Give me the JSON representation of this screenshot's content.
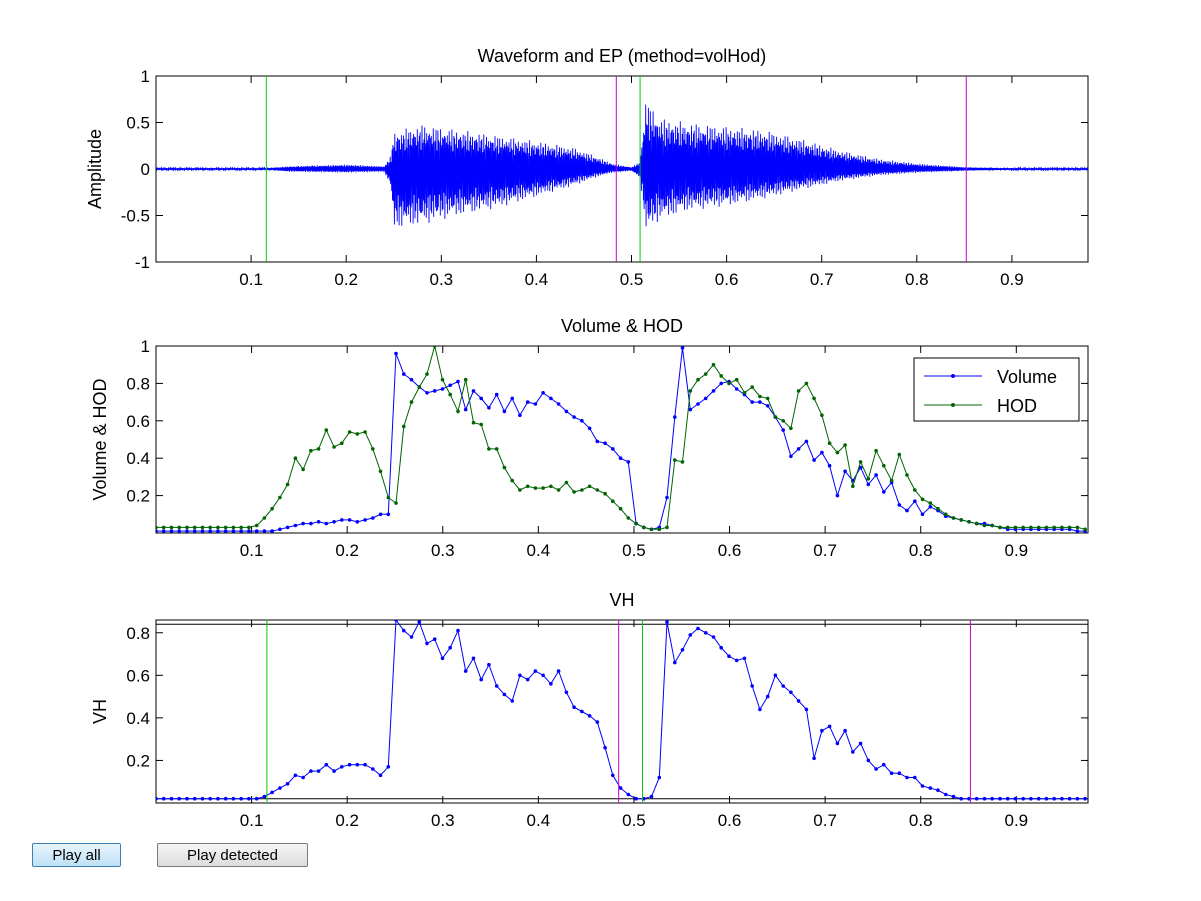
{
  "buttons": {
    "play_all": "Play all",
    "play_detected": "Play detected"
  },
  "colors": {
    "wave": "#0000ff",
    "volume": "#0000ff",
    "hod": "#006400",
    "ep_start": "#00cc00",
    "ep_end": "#cc00cc"
  },
  "endpoints": {
    "start": [
      0.116,
      0.509
    ],
    "end": [
      0.484,
      0.852
    ]
  },
  "chart_data": [
    {
      "type": "line",
      "title": "Waveform and EP (method=volHod)",
      "ylabel": "Amplitude",
      "xlim": [
        0.0,
        0.98
      ],
      "ylim": [
        -1,
        1
      ],
      "xticks": [
        "0.1",
        "0.2",
        "0.3",
        "0.4",
        "0.5",
        "0.6",
        "0.7",
        "0.8",
        "0.9"
      ],
      "yticks": [
        "-1",
        "-0.5",
        "0",
        "0.5",
        "1"
      ],
      "grid": false,
      "envelope": {
        "x": [
          0.0,
          0.116,
          0.14,
          0.2,
          0.24,
          0.247,
          0.25,
          0.28,
          0.32,
          0.36,
          0.4,
          0.44,
          0.46,
          0.48,
          0.5,
          0.509,
          0.515,
          0.53,
          0.56,
          0.6,
          0.64,
          0.68,
          0.72,
          0.76,
          0.8,
          0.852,
          0.9,
          0.98
        ],
        "pos": [
          0.01,
          0.01,
          0.03,
          0.05,
          0.03,
          0.15,
          0.4,
          0.48,
          0.42,
          0.36,
          0.3,
          0.23,
          0.15,
          0.06,
          0.02,
          0.08,
          0.75,
          0.55,
          0.5,
          0.46,
          0.42,
          0.32,
          0.2,
          0.11,
          0.06,
          0.02,
          0.01,
          0.01
        ],
        "neg": [
          -0.01,
          -0.01,
          -0.03,
          -0.04,
          -0.03,
          -0.2,
          -0.65,
          -0.6,
          -0.5,
          -0.42,
          -0.3,
          -0.18,
          -0.1,
          -0.04,
          -0.02,
          -0.1,
          -0.68,
          -0.55,
          -0.45,
          -0.4,
          -0.32,
          -0.22,
          -0.13,
          -0.07,
          -0.04,
          -0.02,
          -0.01,
          -0.01
        ]
      }
    },
    {
      "type": "line",
      "title": "Volume & HOD",
      "ylabel": "Volume & HOD",
      "xlim": [
        0.0,
        0.975
      ],
      "ylim": [
        0,
        1
      ],
      "xticks": [
        "0.1",
        "0.2",
        "0.3",
        "0.4",
        "0.5",
        "0.6",
        "0.7",
        "0.8",
        "0.9"
      ],
      "yticks": [
        "0.2",
        "0.4",
        "0.6",
        "0.8",
        "1"
      ],
      "legend": "top-right",
      "grid": false,
      "x_start": 0.0,
      "x_step": 0.0081,
      "series": [
        {
          "name": "Volume",
          "color": "#0000ff",
          "values": [
            0.01,
            0.01,
            0.01,
            0.01,
            0.01,
            0.01,
            0.01,
            0.01,
            0.01,
            0.01,
            0.01,
            0.01,
            0.01,
            0.01,
            0.01,
            0.01,
            0.02,
            0.03,
            0.04,
            0.05,
            0.05,
            0.06,
            0.05,
            0.06,
            0.07,
            0.07,
            0.06,
            0.07,
            0.08,
            0.1,
            0.1,
            0.96,
            0.85,
            0.82,
            0.78,
            0.75,
            0.76,
            0.77,
            0.79,
            0.81,
            0.66,
            0.76,
            0.72,
            0.67,
            0.74,
            0.65,
            0.72,
            0.63,
            0.7,
            0.69,
            0.75,
            0.72,
            0.69,
            0.65,
            0.62,
            0.6,
            0.56,
            0.49,
            0.48,
            0.45,
            0.4,
            0.38,
            0.05,
            0.03,
            0.02,
            0.03,
            0.19,
            0.62,
            0.99,
            0.66,
            0.69,
            0.72,
            0.76,
            0.8,
            0.81,
            0.77,
            0.74,
            0.7,
            0.7,
            0.68,
            0.62,
            0.55,
            0.41,
            0.45,
            0.49,
            0.39,
            0.43,
            0.36,
            0.2,
            0.33,
            0.28,
            0.35,
            0.26,
            0.31,
            0.22,
            0.27,
            0.15,
            0.12,
            0.17,
            0.1,
            0.14,
            0.12,
            0.09,
            0.08,
            0.07,
            0.06,
            0.05,
            0.05,
            0.04,
            0.03,
            0.02,
            0.02,
            0.02,
            0.02,
            0.02,
            0.02,
            0.02,
            0.02,
            0.02,
            0.01,
            0.01
          ]
        },
        {
          "name": "HOD",
          "color": "#006400",
          "values": [
            0.03,
            0.03,
            0.03,
            0.03,
            0.03,
            0.03,
            0.03,
            0.03,
            0.03,
            0.03,
            0.03,
            0.03,
            0.03,
            0.04,
            0.08,
            0.13,
            0.19,
            0.26,
            0.4,
            0.34,
            0.44,
            0.45,
            0.55,
            0.46,
            0.48,
            0.54,
            0.53,
            0.54,
            0.45,
            0.33,
            0.19,
            0.16,
            0.57,
            0.7,
            0.78,
            0.85,
            1.0,
            0.82,
            0.74,
            0.65,
            0.82,
            0.59,
            0.58,
            0.45,
            0.45,
            0.35,
            0.28,
            0.23,
            0.25,
            0.24,
            0.24,
            0.25,
            0.23,
            0.27,
            0.22,
            0.23,
            0.25,
            0.23,
            0.21,
            0.17,
            0.13,
            0.08,
            0.05,
            0.03,
            0.02,
            0.02,
            0.03,
            0.39,
            0.38,
            0.76,
            0.82,
            0.85,
            0.9,
            0.84,
            0.8,
            0.82,
            0.75,
            0.78,
            0.73,
            0.72,
            0.62,
            0.6,
            0.56,
            0.76,
            0.8,
            0.72,
            0.63,
            0.48,
            0.43,
            0.47,
            0.25,
            0.38,
            0.29,
            0.44,
            0.36,
            0.28,
            0.42,
            0.31,
            0.23,
            0.18,
            0.16,
            0.13,
            0.1,
            0.08,
            0.07,
            0.06,
            0.05,
            0.04,
            0.04,
            0.03,
            0.03,
            0.03,
            0.03,
            0.03,
            0.03,
            0.03,
            0.03,
            0.03,
            0.03,
            0.03,
            0.02
          ]
        }
      ]
    },
    {
      "type": "line",
      "title": "VH",
      "ylabel": "VH",
      "xlim": [
        0.0,
        0.975
      ],
      "ylim": [
        0,
        0.86
      ],
      "xticks": [
        "0.1",
        "0.2",
        "0.3",
        "0.4",
        "0.5",
        "0.6",
        "0.7",
        "0.8",
        "0.9"
      ],
      "yticks": [
        "0.2",
        "0.4",
        "0.6",
        "0.8"
      ],
      "threshold_lines": [
        0.84,
        0.02
      ],
      "grid": false,
      "x_start": 0.0,
      "x_step": 0.0081,
      "series": [
        {
          "name": "",
          "color": "#0000ff",
          "values": [
            0.02,
            0.02,
            0.02,
            0.02,
            0.02,
            0.02,
            0.02,
            0.02,
            0.02,
            0.02,
            0.02,
            0.02,
            0.02,
            0.02,
            0.03,
            0.05,
            0.07,
            0.09,
            0.13,
            0.12,
            0.15,
            0.15,
            0.18,
            0.15,
            0.17,
            0.18,
            0.18,
            0.18,
            0.16,
            0.13,
            0.17,
            0.86,
            0.81,
            0.78,
            0.85,
            0.75,
            0.77,
            0.68,
            0.73,
            0.81,
            0.62,
            0.68,
            0.58,
            0.65,
            0.55,
            0.51,
            0.48,
            0.6,
            0.58,
            0.62,
            0.6,
            0.56,
            0.62,
            0.52,
            0.45,
            0.43,
            0.41,
            0.38,
            0.26,
            0.13,
            0.07,
            0.04,
            0.02,
            0.02,
            0.03,
            0.12,
            0.85,
            0.66,
            0.72,
            0.79,
            0.82,
            0.8,
            0.78,
            0.73,
            0.69,
            0.67,
            0.68,
            0.55,
            0.44,
            0.5,
            0.6,
            0.55,
            0.52,
            0.48,
            0.44,
            0.21,
            0.34,
            0.36,
            0.28,
            0.34,
            0.24,
            0.28,
            0.2,
            0.16,
            0.18,
            0.14,
            0.14,
            0.12,
            0.12,
            0.08,
            0.07,
            0.06,
            0.04,
            0.03,
            0.02,
            0.02,
            0.02,
            0.02,
            0.02,
            0.02,
            0.02,
            0.02,
            0.02,
            0.02,
            0.02,
            0.02,
            0.02,
            0.02,
            0.02,
            0.02,
            0.02
          ]
        }
      ]
    }
  ]
}
